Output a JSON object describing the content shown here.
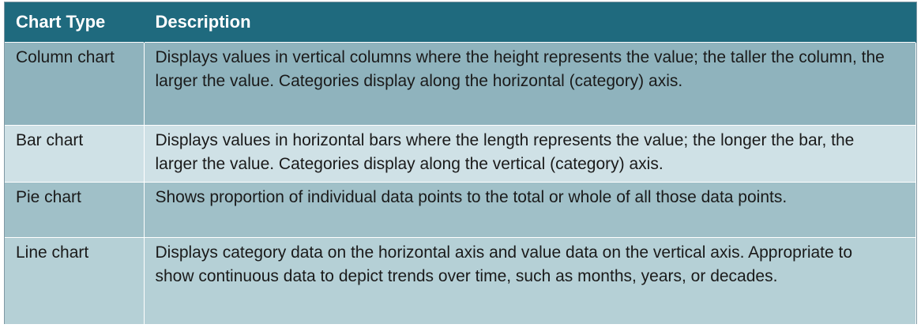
{
  "table": {
    "headers": [
      "Chart Type",
      "Description"
    ],
    "rows": [
      {
        "type": "Column chart",
        "description": "Displays values in vertical columns where the height represents the value; the taller the column, the larger the value. Categories display along the horizontal (category) axis."
      },
      {
        "type": "Bar chart",
        "description": "Displays values in horizontal bars where the length represents the value; the longer the bar, the larger the value. Categories display along the vertical (category) axis."
      },
      {
        "type": "Pie chart",
        "description": "Shows proportion of individual data points to the total or whole of all those data points."
      },
      {
        "type": "Line chart",
        "description": "Displays category data on the horizontal axis and value data on the vertical axis. Appropriate to show continuous data to depict trends over time, such as months, years, or decades."
      }
    ]
  },
  "colors": {
    "header_bg": "#1f6a7e",
    "row1_bg": "#8fb3bd",
    "row2_bg": "#cfe1e6",
    "row3_bg": "#a0c0c8",
    "row4_bg": "#b5d0d6"
  }
}
